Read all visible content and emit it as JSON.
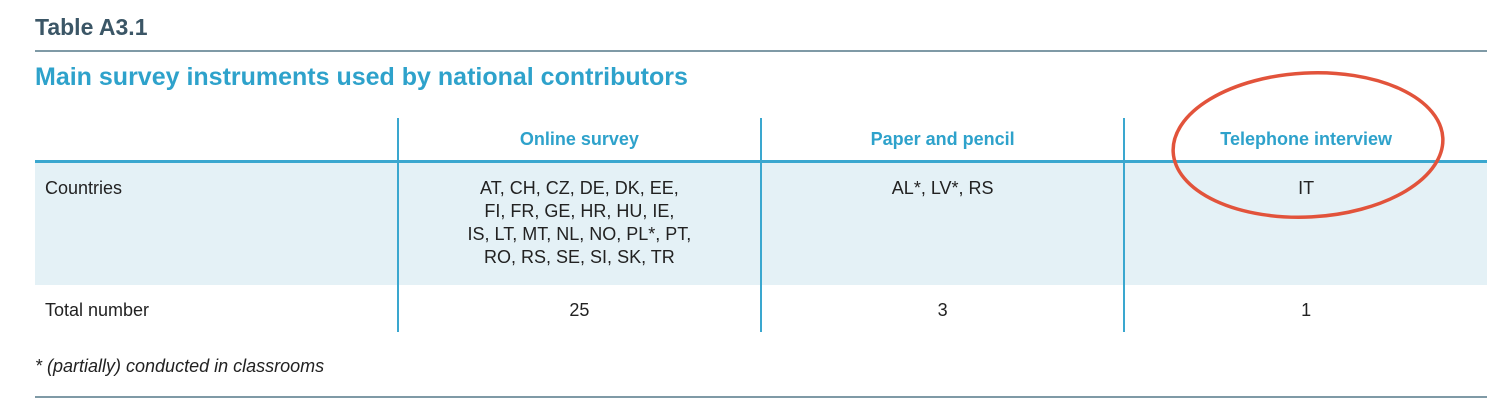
{
  "label": "Table A3.1",
  "title": "Main survey instruments used by national contributors",
  "table": {
    "header": [
      "",
      "Online survey",
      "Paper and pencil",
      "Telephone interview"
    ],
    "rows": [
      [
        "Countries",
        [
          "AT, CH, CZ, DE, DK, EE,",
          "FI, FR, GE, HR, HU, IE,",
          "IS, LT, MT, NL, NO, PL*, PT,",
          "RO, RS, SE, SI, SK, TR"
        ],
        "AL*, LV*, RS",
        "IT"
      ],
      [
        "Total number",
        "25",
        "3",
        "1"
      ]
    ]
  },
  "footnote": "* (partially) conducted in classrooms"
}
